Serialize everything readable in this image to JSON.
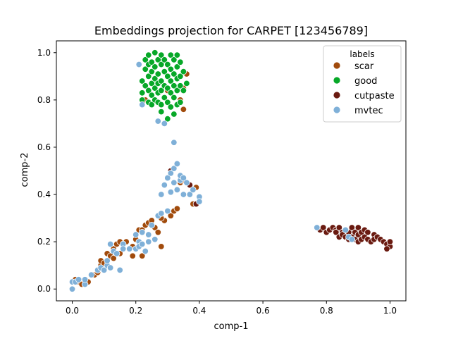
{
  "chart_data": {
    "type": "scatter",
    "title": "Embeddings projection for CARPET [123456789]",
    "xlabel": "comp-1",
    "ylabel": "comp-2",
    "xlim": [
      -0.05,
      1.05
    ],
    "ylim": [
      -0.05,
      1.05
    ],
    "xticks": [
      "0.0",
      "0.2",
      "0.4",
      "0.6",
      "0.8",
      "1.0"
    ],
    "yticks": [
      "0.0",
      "0.2",
      "0.4",
      "0.6",
      "0.8",
      "1.0"
    ],
    "grid": false,
    "legend": {
      "title": "labels",
      "placement": "top-right"
    },
    "series": [
      {
        "name": "scar",
        "color": "#a14b0c",
        "points": [
          [
            0.01,
            0.04
          ],
          [
            0.02,
            0.03
          ],
          [
            0.03,
            0.02
          ],
          [
            0.04,
            0.02
          ],
          [
            0.05,
            0.03
          ],
          [
            0.07,
            0.06
          ],
          [
            0.08,
            0.07
          ],
          [
            0.09,
            0.1
          ],
          [
            0.09,
            0.12
          ],
          [
            0.1,
            0.11
          ],
          [
            0.11,
            0.15
          ],
          [
            0.12,
            0.14
          ],
          [
            0.13,
            0.17
          ],
          [
            0.14,
            0.19
          ],
          [
            0.15,
            0.2
          ],
          [
            0.17,
            0.2
          ],
          [
            0.19,
            0.18
          ],
          [
            0.19,
            0.14
          ],
          [
            0.2,
            0.21
          ],
          [
            0.21,
            0.25
          ],
          [
            0.22,
            0.25
          ],
          [
            0.23,
            0.27
          ],
          [
            0.24,
            0.28
          ],
          [
            0.25,
            0.29
          ],
          [
            0.26,
            0.26
          ],
          [
            0.27,
            0.24
          ],
          [
            0.28,
            0.18
          ],
          [
            0.29,
            0.29
          ],
          [
            0.31,
            0.31
          ],
          [
            0.32,
            0.33
          ],
          [
            0.33,
            0.34
          ],
          [
            0.34,
            0.45
          ],
          [
            0.35,
            0.46
          ],
          [
            0.38,
            0.36
          ],
          [
            0.39,
            0.43
          ],
          [
            0.23,
            0.8
          ],
          [
            0.3,
            0.84
          ],
          [
            0.34,
            0.8
          ],
          [
            0.35,
            0.85
          ],
          [
            0.36,
            0.91
          ],
          [
            0.35,
            0.76
          ],
          [
            0.13,
            0.13
          ],
          [
            0.15,
            0.15
          ],
          [
            0.22,
            0.14
          ],
          [
            0.28,
            0.3
          ]
        ]
      },
      {
        "name": "good",
        "color": "#07a828",
        "points": [
          [
            0.21,
            0.95
          ],
          [
            0.22,
            0.88
          ],
          [
            0.22,
            0.83
          ],
          [
            0.22,
            0.8
          ],
          [
            0.23,
            0.97
          ],
          [
            0.23,
            0.93
          ],
          [
            0.23,
            0.86
          ],
          [
            0.24,
            0.99
          ],
          [
            0.24,
            0.95
          ],
          [
            0.24,
            0.9
          ],
          [
            0.24,
            0.84
          ],
          [
            0.24,
            0.79
          ],
          [
            0.25,
            0.96
          ],
          [
            0.25,
            0.92
          ],
          [
            0.25,
            0.87
          ],
          [
            0.25,
            0.82
          ],
          [
            0.25,
            0.78
          ],
          [
            0.26,
            1.0
          ],
          [
            0.26,
            0.94
          ],
          [
            0.26,
            0.89
          ],
          [
            0.26,
            0.85
          ],
          [
            0.26,
            0.8
          ],
          [
            0.27,
            0.97
          ],
          [
            0.27,
            0.91
          ],
          [
            0.27,
            0.87
          ],
          [
            0.27,
            0.83
          ],
          [
            0.27,
            0.79
          ],
          [
            0.28,
            0.99
          ],
          [
            0.28,
            0.95
          ],
          [
            0.28,
            0.88
          ],
          [
            0.28,
            0.84
          ],
          [
            0.28,
            0.78
          ],
          [
            0.28,
            0.75
          ],
          [
            0.29,
            0.97
          ],
          [
            0.29,
            0.92
          ],
          [
            0.29,
            0.86
          ],
          [
            0.29,
            0.81
          ],
          [
            0.3,
            0.95
          ],
          [
            0.3,
            0.9
          ],
          [
            0.3,
            0.85
          ],
          [
            0.3,
            0.79
          ],
          [
            0.3,
            0.72
          ],
          [
            0.31,
            0.99
          ],
          [
            0.31,
            0.93
          ],
          [
            0.31,
            0.88
          ],
          [
            0.31,
            0.83
          ],
          [
            0.31,
            0.77
          ],
          [
            0.32,
            0.97
          ],
          [
            0.32,
            0.91
          ],
          [
            0.32,
            0.86
          ],
          [
            0.32,
            0.81
          ],
          [
            0.32,
            0.74
          ],
          [
            0.33,
            0.99
          ],
          [
            0.33,
            0.94
          ],
          [
            0.33,
            0.89
          ],
          [
            0.33,
            0.84
          ],
          [
            0.33,
            0.78
          ],
          [
            0.34,
            0.96
          ],
          [
            0.34,
            0.9
          ],
          [
            0.34,
            0.86
          ],
          [
            0.34,
            0.79
          ],
          [
            0.35,
            0.84
          ],
          [
            0.36,
            0.87
          ],
          [
            0.35,
            0.92
          ]
        ]
      },
      {
        "name": "cutpaste",
        "color": "#6a1a10",
        "points": [
          [
            0.31,
            0.5
          ],
          [
            0.37,
            0.44
          ],
          [
            0.39,
            0.36
          ],
          [
            0.78,
            0.25
          ],
          [
            0.79,
            0.26
          ],
          [
            0.8,
            0.24
          ],
          [
            0.81,
            0.25
          ],
          [
            0.82,
            0.26
          ],
          [
            0.83,
            0.25
          ],
          [
            0.83,
            0.24
          ],
          [
            0.84,
            0.26
          ],
          [
            0.84,
            0.22
          ],
          [
            0.85,
            0.24
          ],
          [
            0.85,
            0.23
          ],
          [
            0.86,
            0.25
          ],
          [
            0.86,
            0.22
          ],
          [
            0.87,
            0.21
          ],
          [
            0.87,
            0.24
          ],
          [
            0.88,
            0.26
          ],
          [
            0.88,
            0.22
          ],
          [
            0.89,
            0.24
          ],
          [
            0.89,
            0.21
          ],
          [
            0.9,
            0.26
          ],
          [
            0.9,
            0.23
          ],
          [
            0.9,
            0.2
          ],
          [
            0.91,
            0.24
          ],
          [
            0.91,
            0.21
          ],
          [
            0.92,
            0.25
          ],
          [
            0.92,
            0.22
          ],
          [
            0.93,
            0.21
          ],
          [
            0.93,
            0.24
          ],
          [
            0.94,
            0.2
          ],
          [
            0.95,
            0.23
          ],
          [
            0.95,
            0.21
          ],
          [
            0.96,
            0.22
          ],
          [
            0.97,
            0.21
          ],
          [
            0.98,
            0.2
          ],
          [
            0.99,
            0.19
          ],
          [
            1.0,
            0.18
          ],
          [
            1.0,
            0.2
          ],
          [
            0.99,
            0.17
          ]
        ]
      },
      {
        "name": "mvtec",
        "color": "#7fb0d8",
        "points": [
          [
            0.0,
            0.0
          ],
          [
            0.0,
            0.03
          ],
          [
            0.01,
            0.03
          ],
          [
            0.02,
            0.04
          ],
          [
            0.04,
            0.02
          ],
          [
            0.04,
            0.04
          ],
          [
            0.06,
            0.06
          ],
          [
            0.08,
            0.08
          ],
          [
            0.09,
            0.09
          ],
          [
            0.1,
            0.08
          ],
          [
            0.11,
            0.1
          ],
          [
            0.11,
            0.12
          ],
          [
            0.12,
            0.09
          ],
          [
            0.12,
            0.19
          ],
          [
            0.13,
            0.16
          ],
          [
            0.14,
            0.15
          ],
          [
            0.15,
            0.08
          ],
          [
            0.16,
            0.19
          ],
          [
            0.16,
            0.17
          ],
          [
            0.18,
            0.17
          ],
          [
            0.2,
            0.17
          ],
          [
            0.2,
            0.23
          ],
          [
            0.21,
            0.2
          ],
          [
            0.21,
            0.18
          ],
          [
            0.22,
            0.19
          ],
          [
            0.22,
            0.24
          ],
          [
            0.23,
            0.16
          ],
          [
            0.24,
            0.2
          ],
          [
            0.24,
            0.23
          ],
          [
            0.25,
            0.27
          ],
          [
            0.26,
            0.21
          ],
          [
            0.27,
            0.31
          ],
          [
            0.28,
            0.32
          ],
          [
            0.28,
            0.4
          ],
          [
            0.29,
            0.44
          ],
          [
            0.3,
            0.33
          ],
          [
            0.3,
            0.47
          ],
          [
            0.31,
            0.49
          ],
          [
            0.31,
            0.41
          ],
          [
            0.32,
            0.45
          ],
          [
            0.32,
            0.51
          ],
          [
            0.33,
            0.53
          ],
          [
            0.33,
            0.42
          ],
          [
            0.34,
            0.46
          ],
          [
            0.34,
            0.48
          ],
          [
            0.35,
            0.47
          ],
          [
            0.35,
            0.4
          ],
          [
            0.36,
            0.45
          ],
          [
            0.37,
            0.4
          ],
          [
            0.38,
            0.42
          ],
          [
            0.4,
            0.39
          ],
          [
            0.4,
            0.37
          ],
          [
            0.32,
            0.62
          ],
          [
            0.22,
            0.78
          ],
          [
            0.21,
            0.95
          ],
          [
            0.27,
            0.71
          ],
          [
            0.29,
            0.7
          ],
          [
            0.77,
            0.26
          ],
          [
            0.86,
            0.25
          ],
          [
            0.87,
            0.22
          ],
          [
            0.88,
            0.21
          ]
        ]
      }
    ]
  }
}
